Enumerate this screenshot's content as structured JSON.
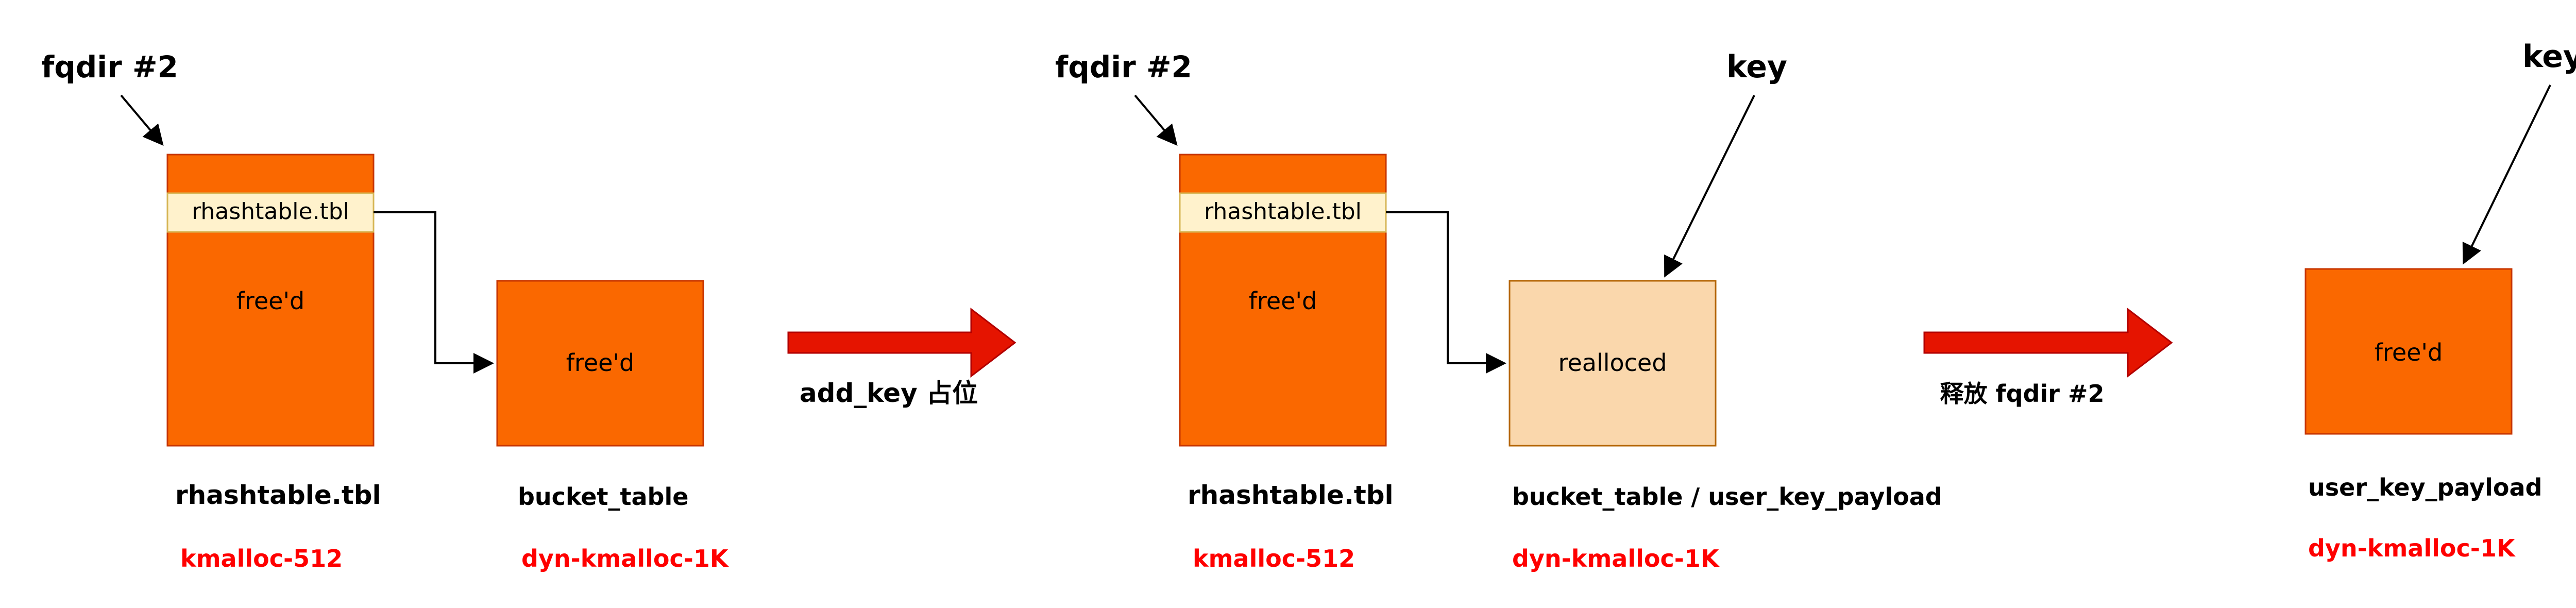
{
  "colors": {
    "orange": "#fa6800",
    "orange_stroke": "#c73500",
    "light_yellow": "#fff2cc",
    "light_yellow_stroke": "#d6b656",
    "peach": "#fad7ac",
    "peach_stroke": "#b46504",
    "red_arrow": "#e51400",
    "red_arrow_stroke": "#b20000",
    "red_text": "#ff0000"
  },
  "panel1": {
    "pointer_label": "fqdir #2",
    "field_label": "rhashtable.tbl",
    "obj1_text": "free'd",
    "obj2_text": "free'd",
    "obj1_name": "rhashtable.tbl",
    "obj1_cache": "kmalloc-512",
    "obj2_name": "bucket_table",
    "obj2_cache": "dyn-kmalloc-1K"
  },
  "step1": {
    "label": "add_key 占位"
  },
  "panel2": {
    "pointer_label": "fqdir #2",
    "key_label": "key",
    "field_label": "rhashtable.tbl",
    "obj1_text": "free'd",
    "obj2_text": "realloced",
    "obj1_name": "rhashtable.tbl",
    "obj1_cache": "kmalloc-512",
    "obj2_name": "bucket_table / user_key_payload",
    "obj2_cache": "dyn-kmalloc-1K"
  },
  "step2": {
    "label": "释放 fqdir #2"
  },
  "panel3": {
    "key_label": "key",
    "obj_text": "free'd",
    "obj_name": "user_key_payload",
    "obj_cache": "dyn-kmalloc-1K"
  }
}
